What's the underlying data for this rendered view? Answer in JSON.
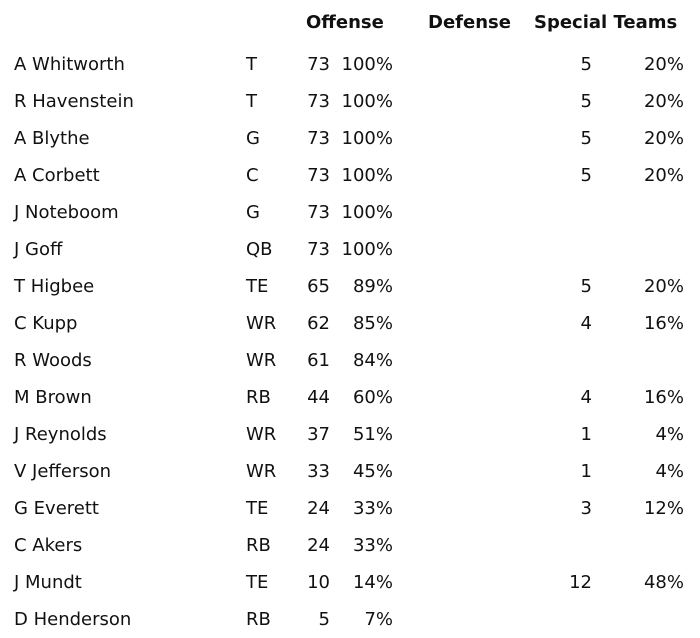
{
  "columns": {
    "offense": "Offense",
    "defense": "Defense",
    "special_teams": "Special Teams"
  },
  "players": [
    {
      "name": "A Whitworth",
      "pos": "T",
      "off_snaps": "73",
      "off_pct": "100%",
      "st_snaps": "5",
      "st_pct": "20%"
    },
    {
      "name": "R Havenstein",
      "pos": "T",
      "off_snaps": "73",
      "off_pct": "100%",
      "st_snaps": "5",
      "st_pct": "20%"
    },
    {
      "name": "A Blythe",
      "pos": "G",
      "off_snaps": "73",
      "off_pct": "100%",
      "st_snaps": "5",
      "st_pct": "20%"
    },
    {
      "name": "A Corbett",
      "pos": "C",
      "off_snaps": "73",
      "off_pct": "100%",
      "st_snaps": "5",
      "st_pct": "20%"
    },
    {
      "name": "J Noteboom",
      "pos": "G",
      "off_snaps": "73",
      "off_pct": "100%",
      "st_snaps": "",
      "st_pct": ""
    },
    {
      "name": "J Goff",
      "pos": "QB",
      "off_snaps": "73",
      "off_pct": "100%",
      "st_snaps": "",
      "st_pct": ""
    },
    {
      "name": "T Higbee",
      "pos": "TE",
      "off_snaps": "65",
      "off_pct": "89%",
      "st_snaps": "5",
      "st_pct": "20%"
    },
    {
      "name": "C Kupp",
      "pos": "WR",
      "off_snaps": "62",
      "off_pct": "85%",
      "st_snaps": "4",
      "st_pct": "16%"
    },
    {
      "name": "R Woods",
      "pos": "WR",
      "off_snaps": "61",
      "off_pct": "84%",
      "st_snaps": "",
      "st_pct": ""
    },
    {
      "name": "M Brown",
      "pos": "RB",
      "off_snaps": "44",
      "off_pct": "60%",
      "st_snaps": "4",
      "st_pct": "16%"
    },
    {
      "name": "J Reynolds",
      "pos": "WR",
      "off_snaps": "37",
      "off_pct": "51%",
      "st_snaps": "1",
      "st_pct": "4%"
    },
    {
      "name": "V Jefferson",
      "pos": "WR",
      "off_snaps": "33",
      "off_pct": "45%",
      "st_snaps": "1",
      "st_pct": "4%"
    },
    {
      "name": "G Everett",
      "pos": "TE",
      "off_snaps": "24",
      "off_pct": "33%",
      "st_snaps": "3",
      "st_pct": "12%"
    },
    {
      "name": "C Akers",
      "pos": "RB",
      "off_snaps": "24",
      "off_pct": "33%",
      "st_snaps": "",
      "st_pct": ""
    },
    {
      "name": "J Mundt",
      "pos": "TE",
      "off_snaps": "10",
      "off_pct": "14%",
      "st_snaps": "12",
      "st_pct": "48%"
    },
    {
      "name": "D Henderson",
      "pos": "RB",
      "off_snaps": "5",
      "off_pct": "7%",
      "st_snaps": "",
      "st_pct": ""
    }
  ]
}
